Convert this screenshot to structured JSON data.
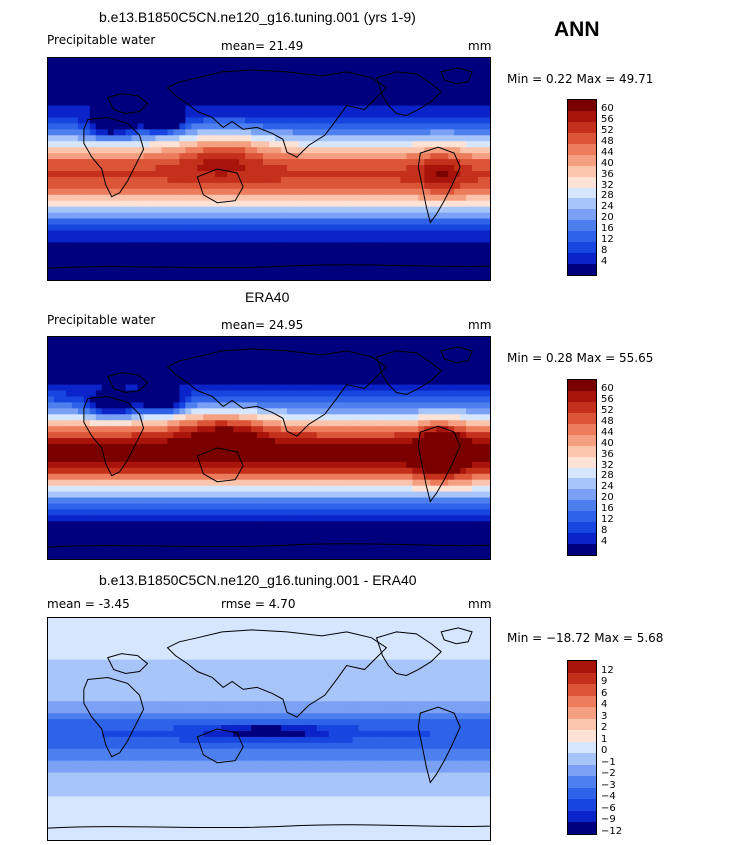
{
  "season": "ANN",
  "palette_hex": {
    "abs": [
      "#00007f",
      "#0b24c9",
      "#1745e0",
      "#2e62e8",
      "#4d80ee",
      "#7aa1f4",
      "#a8c5fa",
      "#d6e6ff",
      "#ffe2d6",
      "#fbc4ad",
      "#f4a080",
      "#ec7c5c",
      "#dd5538",
      "#c4301b",
      "#a8130a",
      "#7a0000"
    ],
    "diff": [
      "#00007f",
      "#0b24c9",
      "#1745e0",
      "#2e62e8",
      "#4d80ee",
      "#7aa1f4",
      "#a8c5fa",
      "#d6e6ff",
      "#ffe2d6",
      "#fbc4ad",
      "#f4a080",
      "#ec7c5c",
      "#dd5538",
      "#c4301b",
      "#a8130a"
    ]
  },
  "panels": [
    {
      "title": "b.e13.B1850C5CN.ne120_g16.tuning.001 (yrs 1-9)",
      "left_text": "Precipitable water",
      "mid_text": "mean=  21.49",
      "units": "mm",
      "minmax": "Min =    0.22 Max =  49.71",
      "levels": [
        "60",
        "56",
        "52",
        "48",
        "44",
        "40",
        "36",
        "32",
        "28",
        "24",
        "20",
        "16",
        "12",
        "8",
        "4"
      ]
    },
    {
      "title": "ERA40",
      "left_text": "Precipitable water",
      "mid_text": "mean=  24.95",
      "units": "mm",
      "minmax": "Min =    0.28 Max =  55.65",
      "levels": [
        "60",
        "56",
        "52",
        "48",
        "44",
        "40",
        "36",
        "32",
        "28",
        "24",
        "20",
        "16",
        "12",
        "8",
        "4"
      ]
    },
    {
      "title": "b.e13.B1850C5CN.ne120_g16.tuning.001 - ERA40",
      "left_text": "mean =   -3.45",
      "mid_text": "rmse =    4.70",
      "units": "mm",
      "minmax": "Min = −18.72 Max =    5.68",
      "levels": [
        "12",
        "9",
        "6",
        "4",
        "3",
        "2",
        "1",
        "0",
        "−1",
        "−2",
        "−3",
        "−4",
        "−6",
        "−9",
        "−12"
      ]
    }
  ]
}
